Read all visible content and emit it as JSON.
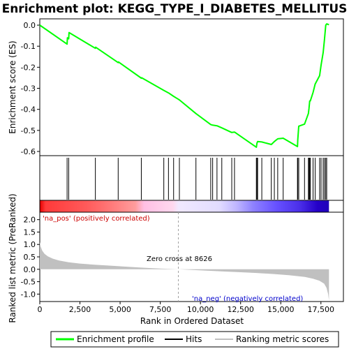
{
  "title": "Enrichment plot: KEGG_TYPE_I_DIABETES_MELLITUS",
  "colors": {
    "enrichment": "#00ff00",
    "hits": "#000000",
    "metric_fill": "#c0c0c0",
    "zero_line": "#a0a0a0",
    "pos_label": "#cc0000",
    "neg_label": "#0000cc"
  },
  "chart_data": [
    {
      "type": "line",
      "panel": "enrichment",
      "ylabel": "Enrichment score (ES)",
      "xlim": [
        0,
        18900
      ],
      "ylim": [
        -0.62,
        0.03
      ],
      "yticks": [
        0.0,
        -0.1,
        -0.2,
        -0.3,
        -0.4,
        -0.5,
        -0.6
      ],
      "ytick_labels": [
        "0.0",
        "-0.1",
        "-0.2",
        "-0.3",
        "-0.4",
        "-0.5",
        "-0.6"
      ],
      "grid": false,
      "series": [
        {
          "name": "Enrichment profile",
          "x": [
            0,
            1700,
            1720,
            1800,
            1820,
            3460,
            3480,
            4880,
            4900,
            6320,
            6340,
            7720,
            8010,
            8330,
            8690,
            9720,
            10640,
            10760,
            11030,
            11330,
            11950,
            12120,
            13480,
            13520,
            13560,
            13820,
            14410,
            14600,
            14810,
            15150,
            16040,
            16060,
            16120,
            16480,
            16720,
            16760,
            16800,
            16840,
            17010,
            17140,
            17420,
            17510,
            17640,
            17720,
            17800,
            17860,
            18000
          ],
          "values": [
            0.0,
            -0.09,
            -0.06,
            -0.065,
            -0.035,
            -0.11,
            -0.105,
            -0.178,
            -0.175,
            -0.252,
            -0.25,
            -0.31,
            -0.322,
            -0.338,
            -0.355,
            -0.42,
            -0.472,
            -0.475,
            -0.478,
            -0.488,
            -0.51,
            -0.508,
            -0.58,
            -0.56,
            -0.553,
            -0.555,
            -0.567,
            -0.553,
            -0.54,
            -0.537,
            -0.577,
            -0.545,
            -0.48,
            -0.47,
            -0.42,
            -0.395,
            -0.36,
            -0.36,
            -0.32,
            -0.28,
            -0.24,
            -0.19,
            -0.13,
            -0.07,
            0.0,
            0.006,
            0.002
          ]
        }
      ]
    },
    {
      "type": "scatter",
      "panel": "hits",
      "series": [
        {
          "name": "Hits",
          "x": [
            1700,
            1800,
            3460,
            4880,
            6320,
            7720,
            8010,
            8330,
            8690,
            9720,
            10640,
            10760,
            11030,
            11330,
            11950,
            12120,
            13480,
            13520,
            13560,
            13820,
            14410,
            14600,
            14810,
            15150,
            16040,
            16060,
            16120,
            16480,
            16720,
            16760,
            16800,
            16840,
            17010,
            17140,
            17420,
            17510,
            17640,
            17720,
            17800,
            17860
          ]
        }
      ]
    },
    {
      "type": "area",
      "panel": "ranked_metric",
      "xlabel": "Rank in Ordered Dataset",
      "ylabel": "Ranked list metric (PreRanked)",
      "xlim": [
        0,
        18900
      ],
      "ylim": [
        -1.3,
        2.3
      ],
      "xticks": [
        0,
        2500,
        5000,
        7500,
        10000,
        12500,
        15000,
        17500
      ],
      "xtick_labels": [
        "0",
        "2,500",
        "5,000",
        "7,500",
        "10,000",
        "12,500",
        "15,000",
        "17,500"
      ],
      "yticks": [
        2.0,
        1.5,
        1.0,
        0.5,
        0.0,
        -0.5,
        -1.0
      ],
      "ytick_labels": [
        "2.0",
        "1.5",
        "1.0",
        "0.5",
        "0.0",
        "-0.5",
        "-1.0"
      ],
      "x": [
        0,
        50,
        150,
        300,
        500,
        800,
        1200,
        1800,
        2500,
        3500,
        4500,
        5500,
        6500,
        7500,
        8626,
        9500,
        10500,
        11500,
        12500,
        13500,
        14500,
        15500,
        16500,
        17000,
        17400,
        17700,
        17850,
        17950,
        18000
      ],
      "values": [
        1.1,
        0.92,
        0.75,
        0.62,
        0.52,
        0.43,
        0.35,
        0.28,
        0.23,
        0.18,
        0.14,
        0.1,
        0.06,
        0.03,
        0.0,
        -0.03,
        -0.06,
        -0.09,
        -0.12,
        -0.15,
        -0.19,
        -0.24,
        -0.31,
        -0.38,
        -0.46,
        -0.58,
        -0.75,
        -1.0,
        -1.25
      ],
      "series": [
        {
          "name": "Ranking metric scores"
        }
      ],
      "annotations": {
        "zero_cross": "Zero cross at 8626",
        "zero_cross_x": 8626,
        "pos_label": "'na_pos' (positively correlated)",
        "neg_label": "'na_neg' (negatively correlated)"
      }
    }
  ],
  "legend": {
    "items": [
      {
        "label": "Enrichment profile",
        "color": "#00ff00"
      },
      {
        "label": "Hits",
        "color": "#000000"
      },
      {
        "label": "Ranking metric scores",
        "color": "#c0c0c0"
      }
    ]
  }
}
